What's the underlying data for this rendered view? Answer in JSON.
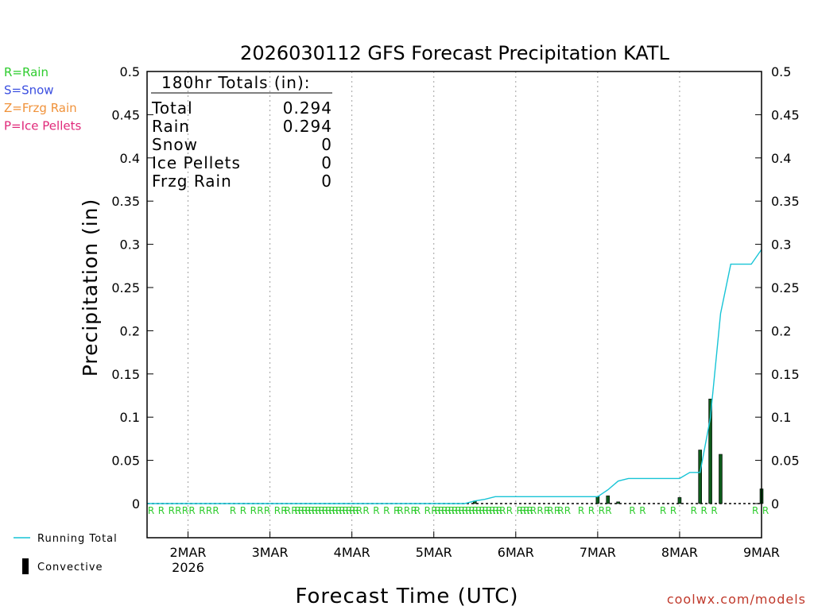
{
  "chart_data": {
    "type": "bar",
    "title": "2026030112 GFS Forecast Precipitation KATL",
    "ylabel": "Precipitation (in)",
    "xlabel": "Forecast Time (UTC)",
    "ylim": [
      0,
      0.5
    ],
    "y_ticks": [
      0,
      0.05,
      0.1,
      0.15,
      0.2,
      0.25,
      0.3,
      0.35,
      0.4,
      0.45,
      0.5
    ],
    "y_tick_labels": [
      "0",
      "0.05",
      "0.1",
      "0.15",
      "0.2",
      "0.25",
      "0.3",
      "0.35",
      "0.4",
      "0.45",
      "0.5"
    ],
    "x_unit": "forecast hour",
    "xlim": [
      0,
      180
    ],
    "x_ticks": [
      12,
      36,
      60,
      84,
      108,
      132,
      156,
      180
    ],
    "x_tick_labels": [
      "2MAR",
      "3MAR",
      "4MAR",
      "5MAR",
      "6MAR",
      "7MAR",
      "8MAR",
      "9MAR"
    ],
    "x_tick_sublabel": "2026",
    "convective": {
      "x": [
        96,
        132,
        135,
        138,
        156,
        162,
        165,
        168,
        180
      ],
      "values": [
        0.003,
        0.008,
        0.009,
        0.002,
        0.007,
        0.062,
        0.121,
        0.057,
        0.017
      ]
    },
    "running_total": {
      "x": [
        0,
        93,
        96,
        99,
        102,
        132,
        135,
        138,
        141,
        156,
        159,
        162,
        165,
        168,
        171,
        177,
        180
      ],
      "values": [
        0,
        0,
        0.003,
        0.005,
        0.008,
        0.008,
        0.016,
        0.026,
        0.029,
        0.029,
        0.036,
        0.036,
        0.099,
        0.22,
        0.277,
        0.277,
        0.294
      ]
    },
    "precip_type_hours": [
      0,
      3,
      6,
      8,
      10,
      12,
      15,
      17,
      19,
      24,
      27,
      30,
      32,
      34,
      37,
      39,
      40,
      42,
      43,
      44,
      45,
      46,
      47,
      48,
      49,
      50,
      51,
      52,
      53,
      54,
      55,
      56,
      57,
      58,
      59,
      60,
      61,
      63,
      66,
      69,
      72,
      73,
      75,
      77,
      78,
      81,
      83,
      84,
      85,
      86,
      87,
      88,
      89,
      90,
      91,
      92,
      93,
      94,
      95,
      96,
      97,
      98,
      99,
      100,
      101,
      102,
      103,
      105,
      108,
      109,
      110,
      111,
      112,
      114,
      116,
      117,
      119,
      120,
      122,
      126,
      129,
      132,
      134,
      141,
      144,
      150,
      153,
      159,
      162,
      165,
      177,
      180
    ],
    "precip_type_symbol": "R",
    "totals_box": {
      "heading": "180hr Totals (in):",
      "rows": [
        {
          "label": "Total",
          "value": "0.294"
        },
        {
          "label": "Rain",
          "value": "0.294"
        },
        {
          "label": "Snow",
          "value": "0"
        },
        {
          "label": "Ice Pellets",
          "value": "0"
        },
        {
          "label": "Frzg Rain",
          "value": "0"
        }
      ]
    },
    "ptype_legend": [
      {
        "text": "R=Rain",
        "color": "#2ecc2e"
      },
      {
        "text": "S=Snow",
        "color": "#3b4fe0"
      },
      {
        "text": "Z=Frzg Rain",
        "color": "#f0923a"
      },
      {
        "text": "P=Ice Pellets",
        "color": "#e0297a"
      }
    ],
    "series_legend": [
      {
        "text": "Running Total",
        "color": "#17c4d6"
      },
      {
        "text": "Convective",
        "color": "#000000"
      }
    ],
    "credit": "coolwx.com/models",
    "colors": {
      "running_total": "#17c4d6",
      "convective_fill": "#0d5a1a",
      "rain": "#2ecc2e",
      "grid": "#a0a0a0"
    }
  }
}
